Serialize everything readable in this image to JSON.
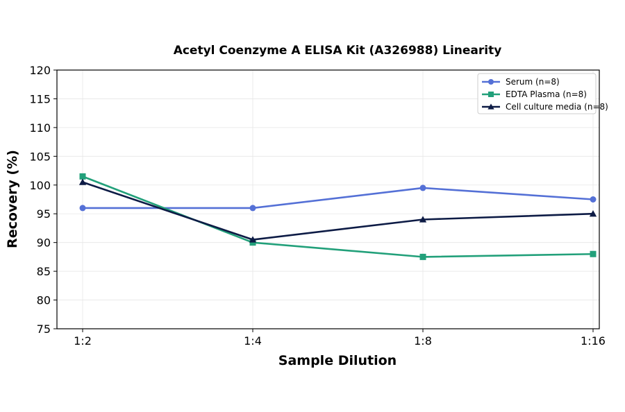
{
  "chart_data": {
    "type": "line",
    "title": "Acetyl Coenzyme A ELISA Kit (A326988) Linearity",
    "xlabel": "Sample Dilution",
    "ylabel": "Recovery (%)",
    "categories": [
      "1:2",
      "1:4",
      "1:8",
      "1:16"
    ],
    "ylim": [
      75,
      120
    ],
    "yticks": [
      75,
      80,
      85,
      90,
      95,
      100,
      105,
      110,
      115,
      120
    ],
    "grid": true,
    "legend_position": "top-right",
    "series": [
      {
        "name": "Serum (n=8)",
        "values": [
          96,
          96,
          99.5,
          97.5
        ],
        "color": "#5470d6",
        "marker": "circle"
      },
      {
        "name": "EDTA Plasma (n=8)",
        "values": [
          101.5,
          90,
          87.5,
          88
        ],
        "color": "#22a07a",
        "marker": "square"
      },
      {
        "name": "Cell culture media (n=8)",
        "values": [
          100.5,
          90.5,
          94,
          95
        ],
        "color": "#0d1b45",
        "marker": "triangle"
      }
    ]
  }
}
